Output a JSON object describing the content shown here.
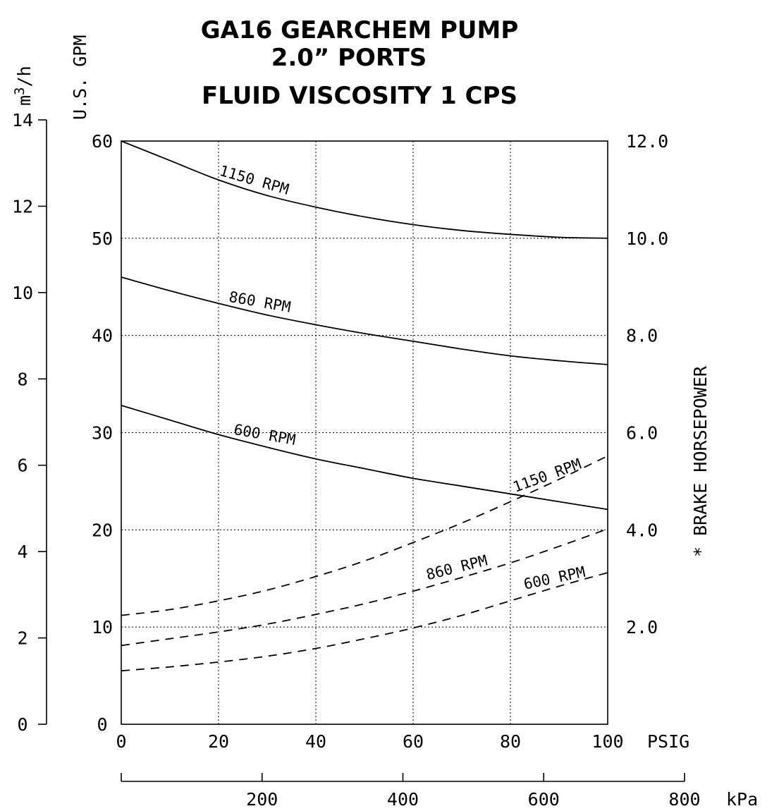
{
  "chart_data": {
    "type": "line",
    "title_lines": [
      "GA16  GEARCHEM  PUMP",
      "2.0”  PORTS",
      "FLUID  VISCOSITY  1  CPS"
    ],
    "xlabel": "PSIG",
    "xlabel_secondary": "kPa",
    "ylabel_left_primary": "U.S. GPM",
    "ylabel_left_secondary_parts": [
      "m",
      "3",
      "/h"
    ],
    "ylabel_right": "* BRAKE HORSEPOWER",
    "xlim": [
      0,
      100
    ],
    "ylim": [
      0,
      60
    ],
    "hp_lim": [
      0,
      12
    ],
    "m3h_lim": [
      0,
      14
    ],
    "kpa_lim": [
      0,
      800
    ],
    "x_ticks": [
      "0",
      "20",
      "40",
      "60",
      "80",
      "100"
    ],
    "y_ticks": [
      "0",
      "10",
      "20",
      "30",
      "40",
      "50",
      "60"
    ],
    "hp_ticks": [
      "2.0",
      "4.0",
      "6.0",
      "8.0",
      "10.0",
      "12.0"
    ],
    "m3h_ticks": [
      "0",
      "2",
      "4",
      "6",
      "8",
      "10",
      "12",
      "14"
    ],
    "kpa_ticks": [
      "200",
      "400",
      "600",
      "800"
    ],
    "grid": true,
    "flow_series": [
      {
        "name": "1150 RPM",
        "x": [
          0,
          10,
          20,
          30,
          40,
          50,
          60,
          70,
          80,
          90,
          100
        ],
        "y": [
          60,
          58.0,
          56.0,
          54.4,
          53.2,
          52.2,
          51.4,
          50.8,
          50.4,
          50.1,
          50.0
        ]
      },
      {
        "name": "860 RPM",
        "x": [
          0,
          10,
          20,
          30,
          40,
          50,
          60,
          70,
          80,
          90,
          100
        ],
        "y": [
          46.0,
          44.6,
          43.3,
          42.1,
          41.1,
          40.2,
          39.4,
          38.6,
          37.9,
          37.4,
          37.0
        ]
      },
      {
        "name": "600 RPM",
        "x": [
          0,
          10,
          20,
          30,
          40,
          50,
          60,
          70,
          80,
          90,
          100
        ],
        "y": [
          32.8,
          31.3,
          29.8,
          28.5,
          27.3,
          26.3,
          25.3,
          24.5,
          23.7,
          22.9,
          22.1
        ]
      }
    ],
    "hp_series": [
      {
        "name": "1150 RPM",
        "x": [
          0,
          10,
          20,
          30,
          40,
          50,
          60,
          70,
          80,
          90,
          100
        ],
        "y": [
          2.24,
          2.36,
          2.54,
          2.76,
          3.04,
          3.36,
          3.74,
          4.14,
          4.58,
          5.04,
          5.52
        ]
      },
      {
        "name": "860 RPM",
        "x": [
          0,
          10,
          20,
          30,
          40,
          50,
          60,
          70,
          80,
          90,
          100
        ],
        "y": [
          1.62,
          1.76,
          1.9,
          2.06,
          2.26,
          2.48,
          2.74,
          3.02,
          3.32,
          3.66,
          4.02
        ]
      },
      {
        "name": "600 RPM",
        "x": [
          0,
          10,
          20,
          30,
          40,
          50,
          60,
          70,
          80,
          90,
          100
        ],
        "y": [
          1.1,
          1.18,
          1.28,
          1.4,
          1.56,
          1.76,
          1.98,
          2.24,
          2.54,
          2.84,
          3.12
        ]
      }
    ]
  }
}
